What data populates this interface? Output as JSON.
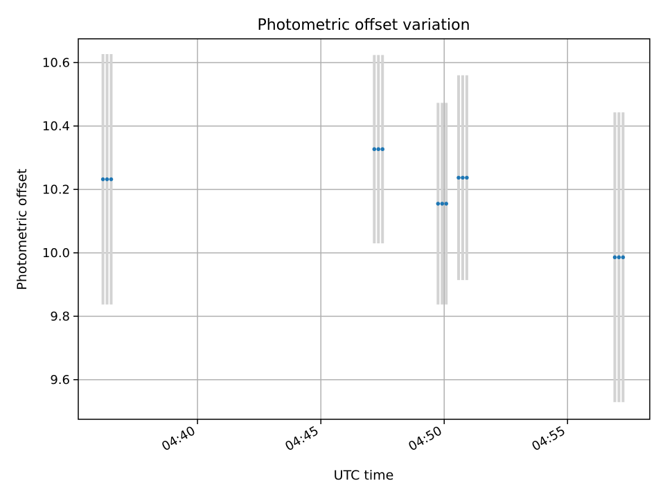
{
  "chart_data": {
    "type": "scatter",
    "title": "Photometric offset variation",
    "xlabel": "UTC time",
    "ylabel": "Photometric offset",
    "xlim": [
      "04:35:10",
      "04:58:20"
    ],
    "ylim": [
      9.475,
      10.675
    ],
    "grid": true,
    "x_ticks": [
      "04:40",
      "04:45",
      "04:50",
      "04:55"
    ],
    "y_ticks": [
      9.6,
      9.8,
      10.0,
      10.2,
      10.4,
      10.6
    ],
    "marker_color": "#1f77b4",
    "errorbar_color": "#d3d3d3",
    "points": [
      {
        "x": "04:36:10",
        "y": 10.232,
        "yerr": 0.395
      },
      {
        "x": "04:36:20",
        "y": 10.232,
        "yerr": 0.395
      },
      {
        "x": "04:36:30",
        "y": 10.232,
        "yerr": 0.395
      },
      {
        "x": "04:47:10",
        "y": 10.327,
        "yerr": 0.297
      },
      {
        "x": "04:47:20",
        "y": 10.327,
        "yerr": 0.297
      },
      {
        "x": "04:47:30",
        "y": 10.327,
        "yerr": 0.297
      },
      {
        "x": "04:49:45",
        "y": 10.155,
        "yerr": 0.318
      },
      {
        "x": "04:49:55",
        "y": 10.155,
        "yerr": 0.318
      },
      {
        "x": "04:50:05",
        "y": 10.155,
        "yerr": 0.318
      },
      {
        "x": "04:50:35",
        "y": 10.237,
        "yerr": 0.323
      },
      {
        "x": "04:50:45",
        "y": 10.237,
        "yerr": 0.323
      },
      {
        "x": "04:50:55",
        "y": 10.237,
        "yerr": 0.323
      },
      {
        "x": "04:56:55",
        "y": 9.986,
        "yerr": 0.457
      },
      {
        "x": "04:57:05",
        "y": 9.986,
        "yerr": 0.457
      },
      {
        "x": "04:57:15",
        "y": 9.986,
        "yerr": 0.457
      }
    ]
  }
}
